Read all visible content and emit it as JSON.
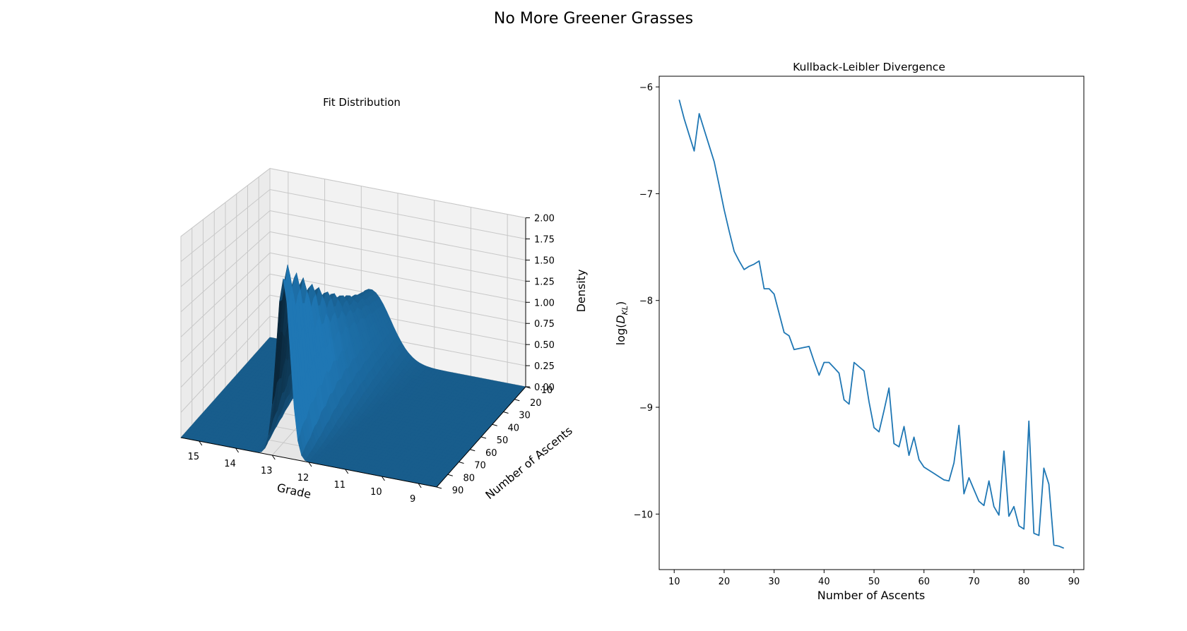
{
  "figure": {
    "title": "No More Greener Grasses"
  },
  "chart_data": [
    {
      "type": "surface",
      "title": "Fit Distribution",
      "xlabel": "Grade",
      "ylabel": "Number of Ascents",
      "zlabel": "Density",
      "x_ticks": [
        "15",
        "14",
        "13",
        "12",
        "11",
        "10",
        "9"
      ],
      "y_ticks": [
        "10",
        "20",
        "30",
        "40",
        "50",
        "60",
        "70",
        "80",
        "90"
      ],
      "z_ticks": [
        "0.00",
        "0.25",
        "0.50",
        "0.75",
        "1.00",
        "1.25",
        "1.50",
        "1.75",
        "2.00"
      ],
      "xlim": [
        15.5,
        8.5
      ],
      "ylim": [
        10,
        90
      ],
      "zlim": [
        0,
        2.0
      ],
      "surface_color": "#1f77b4",
      "grid": true,
      "peak": {
        "grade": 12.7,
        "ascents": 90,
        "density": 2.05
      }
    },
    {
      "type": "line",
      "title": "Kullback-Leibler Divergence",
      "xlabel": "Number of Ascents",
      "ylabel": "log(D_KL)",
      "x_ticks": [
        "10",
        "20",
        "30",
        "40",
        "50",
        "60",
        "70",
        "80",
        "90"
      ],
      "y_ticks": [
        "−6",
        "−7",
        "−8",
        "−9",
        "−10"
      ],
      "xlim": [
        7,
        92
      ],
      "ylim": [
        -10.52,
        -5.9
      ],
      "color": "#1f77b4",
      "grid": false,
      "x": [
        11,
        12,
        13,
        14,
        15,
        16,
        17,
        18,
        19,
        20,
        21,
        22,
        23,
        24,
        25,
        26,
        27,
        28,
        29,
        30,
        31,
        32,
        33,
        34,
        35,
        36,
        37,
        38,
        39,
        40,
        41,
        42,
        43,
        44,
        45,
        46,
        47,
        48,
        49,
        50,
        51,
        52,
        53,
        54,
        55,
        56,
        57,
        58,
        59,
        60,
        61,
        62,
        63,
        64,
        65,
        66,
        67,
        68,
        69,
        70,
        71,
        72,
        73,
        74,
        75,
        76,
        77,
        78,
        79,
        80,
        81,
        82,
        83,
        84,
        85,
        86,
        87,
        88
      ],
      "y": [
        -6.12,
        -6.3,
        -6.45,
        -6.6,
        -6.25,
        -6.4,
        -6.55,
        -6.7,
        -6.92,
        -7.15,
        -7.35,
        -7.54,
        -7.63,
        -7.71,
        -7.68,
        -7.66,
        -7.63,
        -7.89,
        -7.89,
        -7.94,
        -8.12,
        -8.3,
        -8.33,
        -8.46,
        -8.45,
        -8.44,
        -8.43,
        -8.57,
        -8.7,
        -8.58,
        -8.58,
        -8.63,
        -8.68,
        -8.93,
        -8.97,
        -8.58,
        -8.62,
        -8.66,
        -8.95,
        -9.19,
        -9.23,
        -9.03,
        -8.82,
        -9.34,
        -9.37,
        -9.18,
        -9.45,
        -9.28,
        -9.49,
        -9.56,
        -9.59,
        -9.62,
        -9.65,
        -9.68,
        -9.69,
        -9.52,
        -9.17,
        -9.81,
        -9.66,
        -9.77,
        -9.88,
        -9.92,
        -9.69,
        -9.93,
        -10.01,
        -9.41,
        -10.02,
        -9.93,
        -10.11,
        -10.14,
        -9.13,
        -10.18,
        -10.2,
        -9.57,
        -9.72,
        -10.29,
        -10.3,
        -10.32
      ]
    }
  ]
}
